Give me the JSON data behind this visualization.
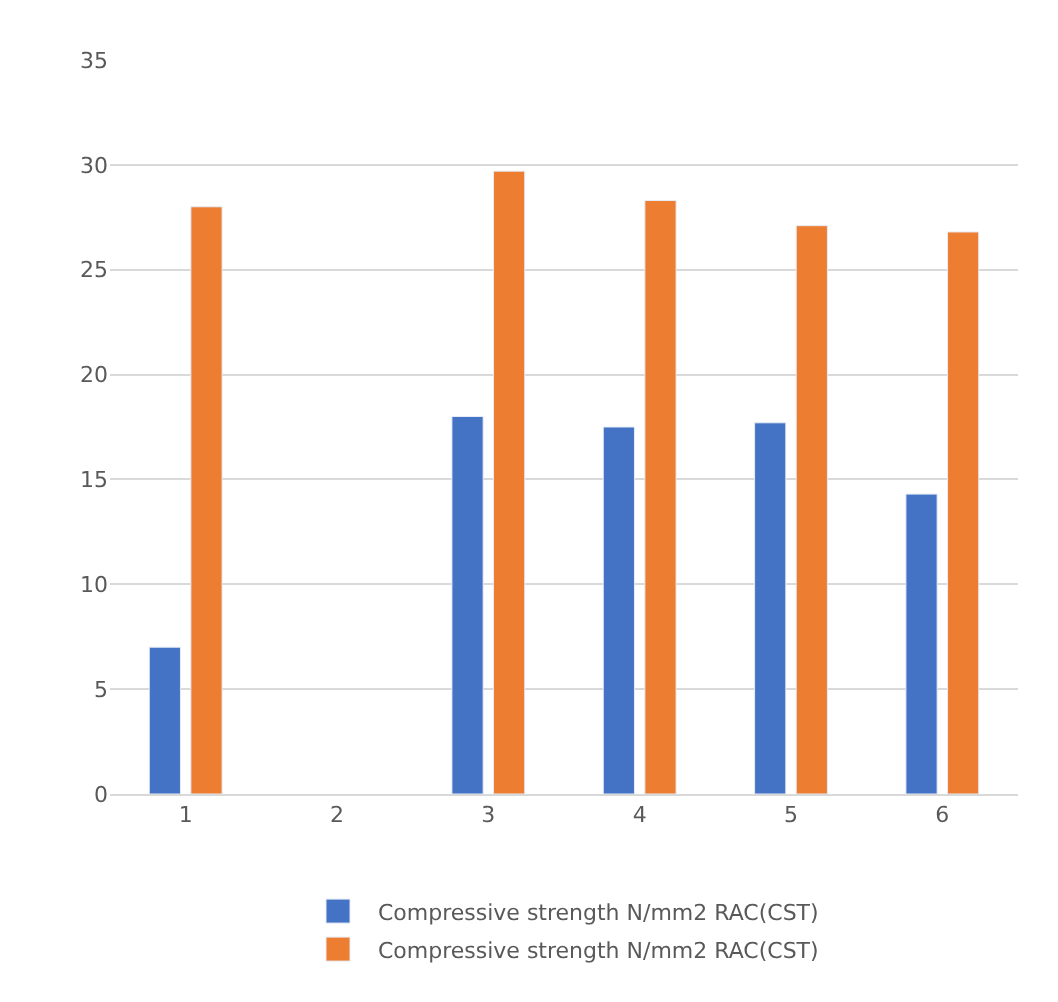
{
  "chart_data": {
    "type": "bar",
    "categories": [
      "1",
      "2",
      "3",
      "4",
      "5",
      "6"
    ],
    "series": [
      {
        "name": "Compressive strength N/mm2 RAC(CST)",
        "color": "#4472c4",
        "values": [
          7.0,
          null,
          18.0,
          17.5,
          17.7,
          14.3
        ]
      },
      {
        "name": "Compressive strength N/mm2 RAC(CST)",
        "color": "#ed7d31",
        "values": [
          28.0,
          null,
          29.7,
          28.3,
          27.1,
          26.8
        ]
      }
    ],
    "ylim": [
      0,
      35
    ],
    "yticks": [
      0,
      5,
      10,
      15,
      20,
      25,
      30,
      35
    ],
    "grid": "y",
    "legend": "bottom"
  }
}
